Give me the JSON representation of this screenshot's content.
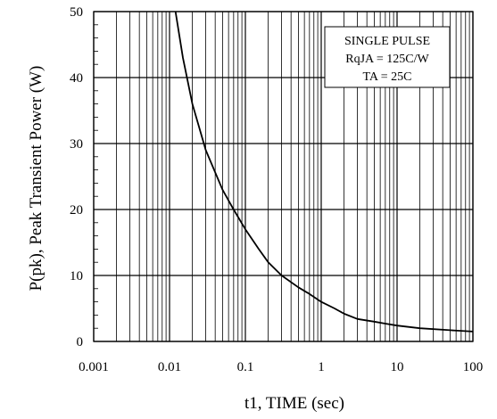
{
  "chart_data": {
    "type": "line",
    "title": "",
    "xlabel": "t1, TIME (sec)",
    "ylabel": "P(pk), Peak Transient Power (W)",
    "xscale": "log",
    "xlim": [
      0.001,
      100
    ],
    "ylim": [
      0,
      50
    ],
    "grid": true,
    "x_ticks": [
      0.001,
      0.01,
      0.1,
      1,
      10,
      100
    ],
    "x_tick_labels": [
      "0.001",
      "0.01",
      "0.1",
      "1",
      "10",
      "100"
    ],
    "y_ticks": [
      0,
      10,
      20,
      30,
      40,
      50
    ],
    "y_tick_labels": [
      "0",
      "10",
      "20",
      "30",
      "40",
      "50"
    ],
    "annotation": [
      "SINGLE PULSE",
      "RqJA = 125C/W",
      "TA = 25C"
    ],
    "series": [
      {
        "color": "#000000",
        "x": [
          0.012,
          0.015,
          0.02,
          0.03,
          0.05,
          0.07,
          0.1,
          0.15,
          0.2,
          0.3,
          0.5,
          0.7,
          1,
          1.5,
          2,
          3,
          5,
          7,
          10,
          20,
          50,
          100
        ],
        "y": [
          50,
          43,
          36,
          29,
          23,
          20,
          17,
          14,
          12,
          10,
          8.2,
          7.2,
          6,
          5,
          4.2,
          3.4,
          3.0,
          2.7,
          2.4,
          2.0,
          1.7,
          1.5
        ]
      }
    ]
  }
}
